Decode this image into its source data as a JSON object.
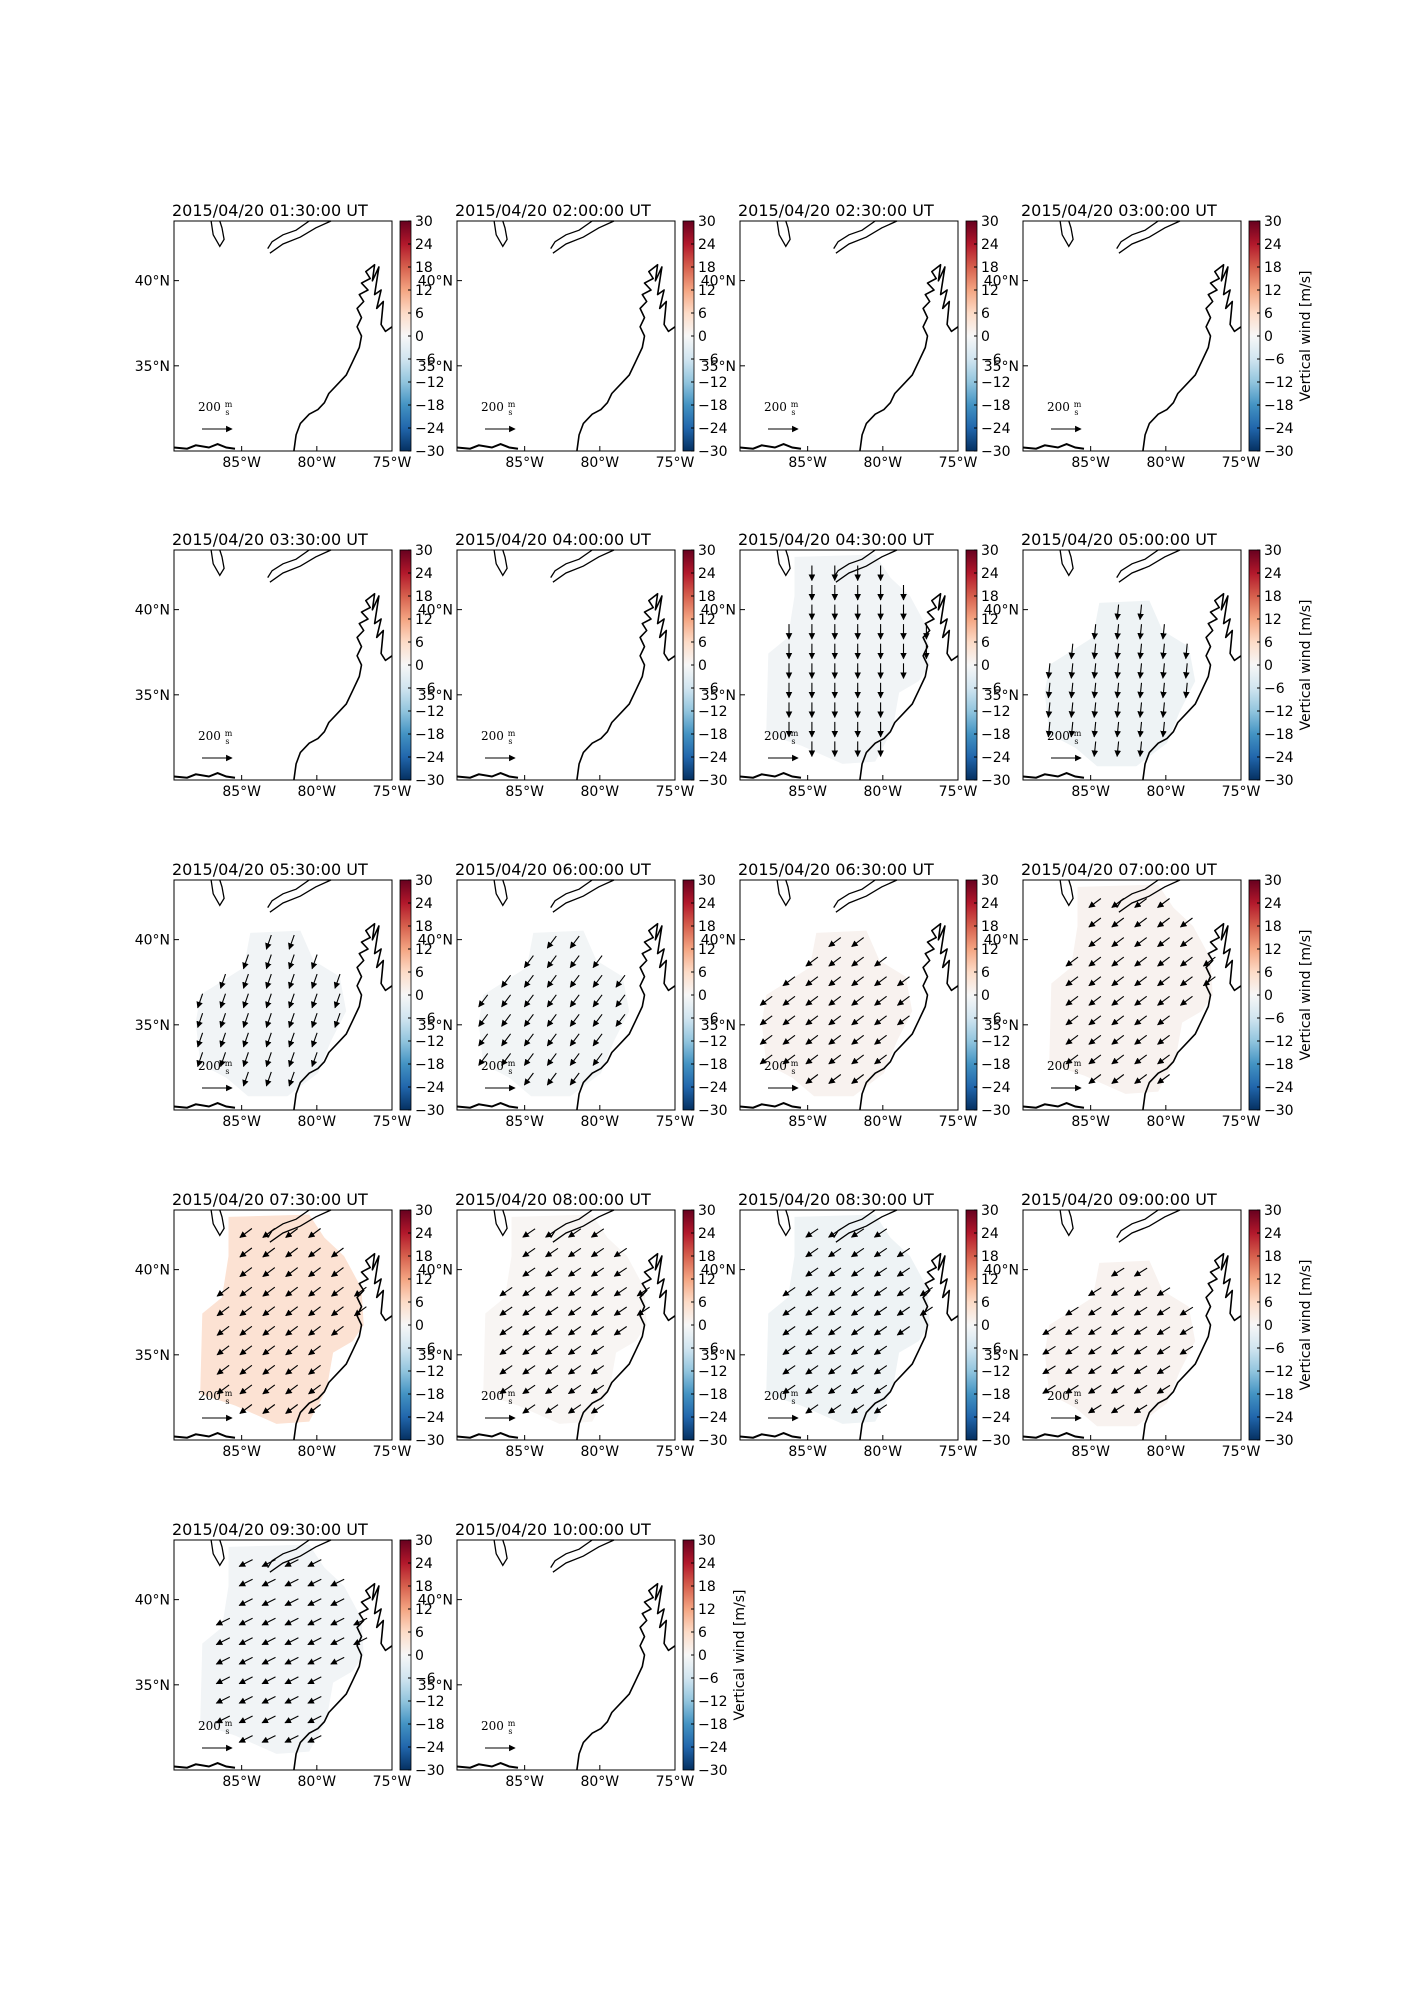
{
  "chart_data": {
    "type": "map",
    "colorbar": {
      "label": "Vertical wind [m/s]",
      "range": [
        -30,
        30
      ],
      "ticks": [
        "30",
        "24",
        "18",
        "12",
        "6",
        "0",
        "−6",
        "−12",
        "−18",
        "−24",
        "−30"
      ],
      "colormap": [
        "#053061",
        "#2166ac",
        "#4393c3",
        "#92c5de",
        "#d1e5f0",
        "#f7f7f7",
        "#fddbc7",
        "#f4a582",
        "#d6604d",
        "#b2182b",
        "#67001f"
      ]
    },
    "map": {
      "lon_range": [
        -89.5,
        -75
      ],
      "lat_range": [
        30,
        43.5
      ],
      "xtick_labels": [
        "85°W",
        "80°W",
        "75°W"
      ],
      "ytick_labels": [
        "40°N",
        "35°N"
      ]
    },
    "reference_vector": {
      "label": "200 m/s",
      "numerator": "m",
      "denominator": "s",
      "magnitude": 200
    },
    "panels": [
      {
        "title": "2015/04/20 01:30:00 UT",
        "shape": "none",
        "vertical_wind": null,
        "wind_dir": null
      },
      {
        "title": "2015/04/20 02:00:00 UT",
        "shape": "none",
        "vertical_wind": null,
        "wind_dir": null
      },
      {
        "title": "2015/04/20 02:30:00 UT",
        "shape": "none",
        "vertical_wind": null,
        "wind_dir": null
      },
      {
        "title": "2015/04/20 03:00:00 UT",
        "shape": "none",
        "vertical_wind": null,
        "wind_dir": null
      },
      {
        "title": "2015/04/20 03:30:00 UT",
        "shape": "none",
        "vertical_wind": null,
        "wind_dir": null
      },
      {
        "title": "2015/04/20 04:00:00 UT",
        "shape": "none",
        "vertical_wind": null,
        "wind_dir": null
      },
      {
        "title": "2015/04/20 04:30:00 UT",
        "shape": "full",
        "vertical_wind": -1,
        "wind_dir": [
          0,
          -1
        ]
      },
      {
        "title": "2015/04/20 05:00:00 UT",
        "shape": "mid",
        "vertical_wind": -1.5,
        "wind_dir": [
          -0.1,
          -1
        ]
      },
      {
        "title": "2015/04/20 05:30:00 UT",
        "shape": "mid",
        "vertical_wind": -1,
        "wind_dir": [
          -0.35,
          -1
        ]
      },
      {
        "title": "2015/04/20 06:00:00 UT",
        "shape": "mid",
        "vertical_wind": -0.8,
        "wind_dir": [
          -0.6,
          -0.8
        ]
      },
      {
        "title": "2015/04/20 06:30:00 UT",
        "shape": "mid",
        "vertical_wind": 1,
        "wind_dir": [
          -0.8,
          -0.6
        ]
      },
      {
        "title": "2015/04/20 07:00:00 UT",
        "shape": "full",
        "vertical_wind": 1,
        "wind_dir": [
          -0.8,
          -0.6
        ]
      },
      {
        "title": "2015/04/20 07:30:00 UT",
        "shape": "full",
        "vertical_wind": 4.5,
        "wind_dir": [
          -0.8,
          -0.6
        ]
      },
      {
        "title": "2015/04/20 08:00:00 UT",
        "shape": "full",
        "vertical_wind": 0.5,
        "wind_dir": [
          -0.8,
          -0.55
        ]
      },
      {
        "title": "2015/04/20 08:30:00 UT",
        "shape": "full",
        "vertical_wind": -1.5,
        "wind_dir": [
          -0.8,
          -0.55
        ]
      },
      {
        "title": "2015/04/20 09:00:00 UT",
        "shape": "mid",
        "vertical_wind": 1,
        "wind_dir": [
          -0.8,
          -0.5
        ]
      },
      {
        "title": "2015/04/20 09:30:00 UT",
        "shape": "full",
        "vertical_wind": -1,
        "wind_dir": [
          -0.8,
          -0.4
        ]
      },
      {
        "title": "2015/04/20 10:00:00 UT",
        "shape": "none",
        "vertical_wind": null,
        "wind_dir": null
      }
    ]
  }
}
